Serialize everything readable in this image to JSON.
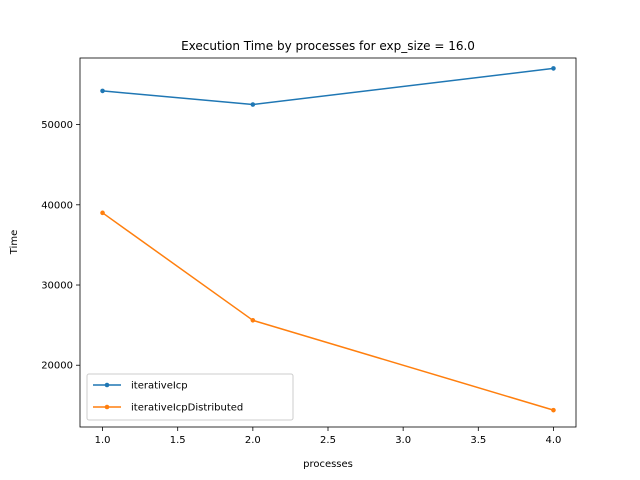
{
  "chart_data": {
    "type": "line",
    "title": "Execution Time by processes for exp_size = 16.0",
    "xlabel": "processes",
    "ylabel": "Time",
    "x": [
      1.0,
      2.0,
      4.0
    ],
    "xlim": [
      0.85,
      4.15
    ],
    "ylim": [
      12300,
      58300
    ],
    "xticks": [
      1.0,
      1.5,
      2.0,
      2.5,
      3.0,
      3.5,
      4.0
    ],
    "xtick_labels": [
      "1.0",
      "1.5",
      "2.0",
      "2.5",
      "3.0",
      "3.5",
      "4.0"
    ],
    "yticks": [
      20000,
      30000,
      40000,
      50000
    ],
    "ytick_labels": [
      "20000",
      "30000",
      "40000",
      "50000"
    ],
    "grid": false,
    "legend_position": "lower-left",
    "series": [
      {
        "name": "iterativeIcp",
        "color": "#1f77b4",
        "values": [
          54200,
          52500,
          57000
        ]
      },
      {
        "name": "iterativeIcpDistributed",
        "color": "#ff7f0e",
        "values": [
          39000,
          25600,
          14400
        ]
      }
    ]
  }
}
